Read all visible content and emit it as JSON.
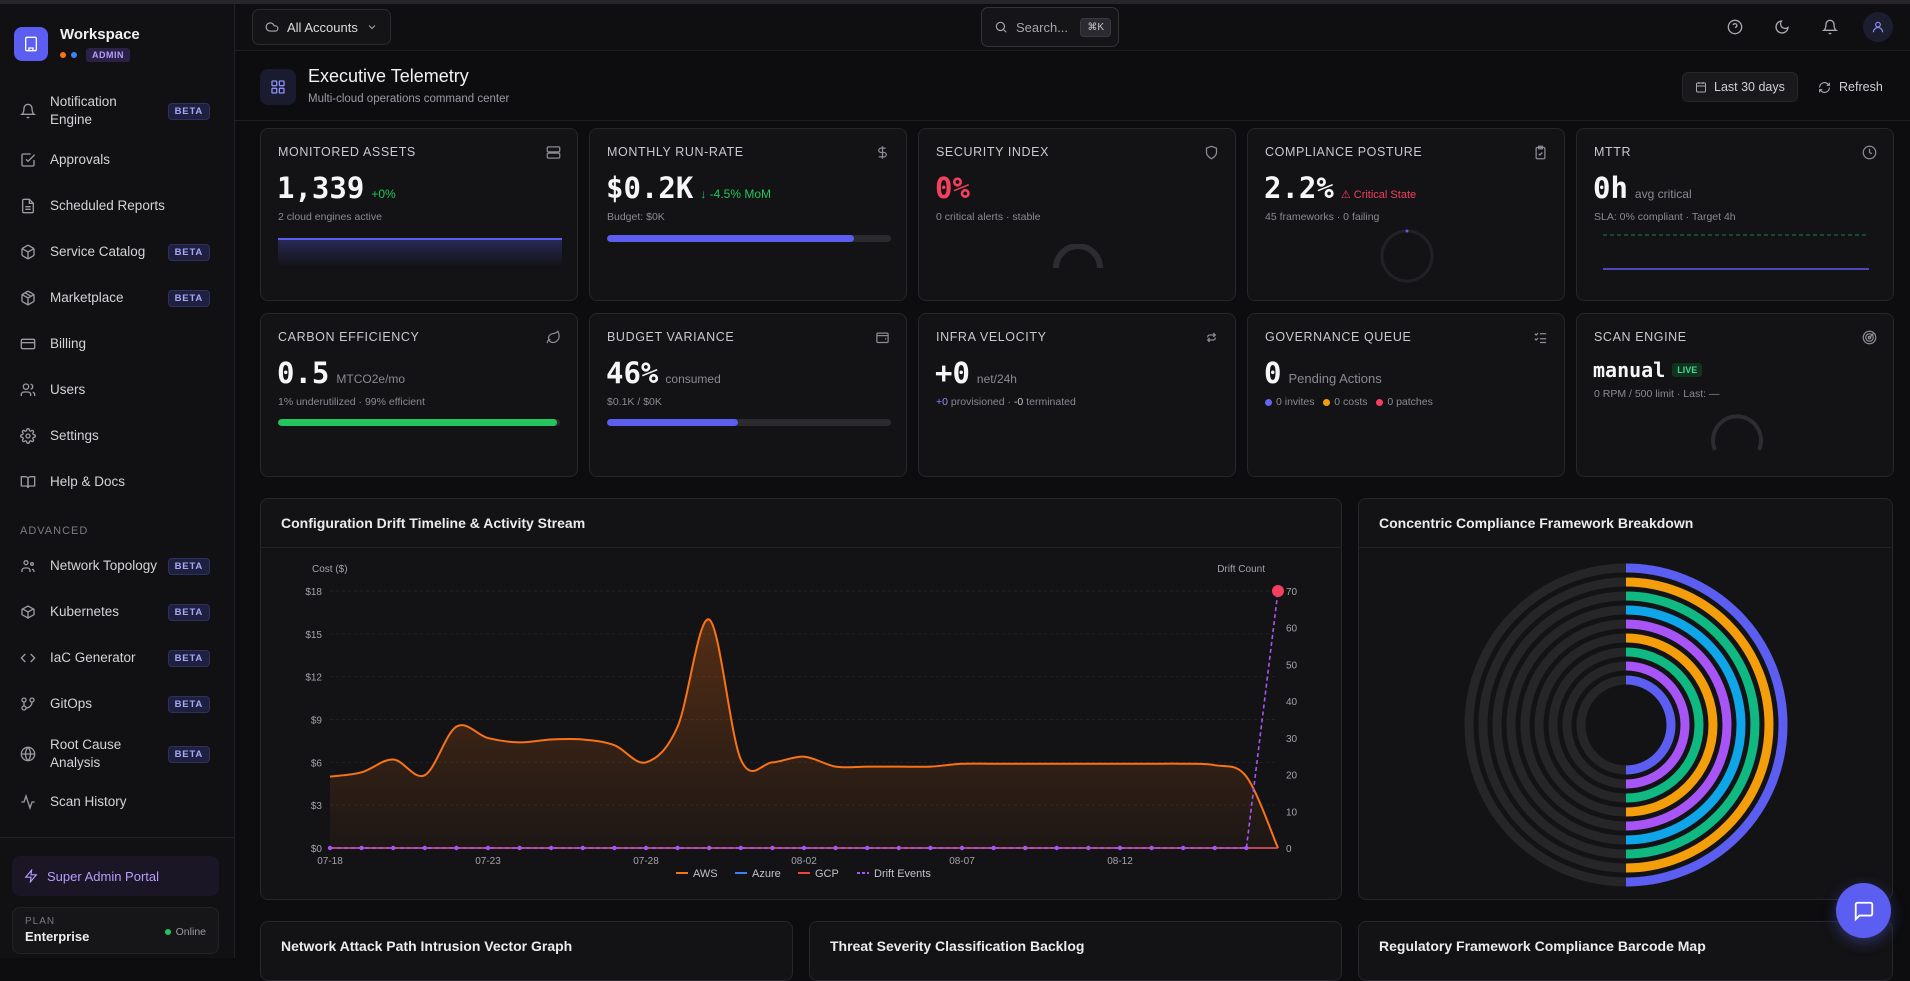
{
  "workspace": {
    "name": "Workspace",
    "role_badge": "ADMIN"
  },
  "sidebar": {
    "items": [
      {
        "label": "Notification Engine",
        "badge": "BETA",
        "icon": "bell-icon"
      },
      {
        "label": "Approvals",
        "badge": "",
        "icon": "check-square-icon"
      },
      {
        "label": "Scheduled Reports",
        "badge": "",
        "icon": "file-icon"
      },
      {
        "label": "Service Catalog",
        "badge": "BETA",
        "icon": "box-icon"
      },
      {
        "label": "Marketplace",
        "badge": "BETA",
        "icon": "package-icon"
      },
      {
        "label": "Billing",
        "badge": "",
        "icon": "credit-card-icon"
      },
      {
        "label": "Users",
        "badge": "",
        "icon": "users-icon"
      },
      {
        "label": "Settings",
        "badge": "",
        "icon": "gear-icon"
      },
      {
        "label": "Help & Docs",
        "badge": "",
        "icon": "book-icon"
      }
    ],
    "section_advanced": "ADVANCED",
    "advanced_items": [
      {
        "label": "Network Topology",
        "badge": "BETA",
        "icon": "network-icon"
      },
      {
        "label": "Kubernetes",
        "badge": "BETA",
        "icon": "cube-icon"
      },
      {
        "label": "IaC Generator",
        "badge": "BETA",
        "icon": "code-icon"
      },
      {
        "label": "GitOps",
        "badge": "BETA",
        "icon": "git-branch-icon"
      },
      {
        "label": "Root Cause Analysis",
        "badge": "BETA",
        "icon": "globe-icon"
      },
      {
        "label": "Scan History",
        "badge": "",
        "icon": "activity-icon"
      }
    ],
    "super_admin": "Super Admin Portal",
    "plan_label": "PLAN",
    "plan_value": "Enterprise",
    "status": "Online"
  },
  "header": {
    "accounts_label": "All Accounts",
    "search_placeholder": "Search...",
    "search_shortcut": "⌘K"
  },
  "page": {
    "title": "Executive Telemetry",
    "subtitle": "Multi-cloud operations command center",
    "range_label": "Last 30 days",
    "refresh_label": "Refresh"
  },
  "kpis": {
    "monitored_assets": {
      "title": "MONITORED ASSETS",
      "value": "1,339",
      "delta": "+0%",
      "sub": "2 cloud engines active"
    },
    "run_rate": {
      "title": "MONTHLY RUN-RATE",
      "value": "$0.2K",
      "delta": "↓ -4.5% MoM",
      "sub": "Budget: $0K",
      "progress": 0.87
    },
    "security": {
      "title": "SECURITY INDEX",
      "value": "0%",
      "sub": "0 critical alerts · stable"
    },
    "compliance": {
      "title": "COMPLIANCE POSTURE",
      "value": "2.2%",
      "delta": "⚠ Critical State",
      "sub": "45 frameworks · 0 failing"
    },
    "mttr": {
      "title": "MTTR",
      "value": "0h",
      "delta": "avg critical",
      "sub": "SLA: 0% compliant · Target 4h"
    },
    "carbon": {
      "title": "CARBON EFFICIENCY",
      "value": "0.5",
      "delta": "MTCO2e/mo",
      "sub": "1% underutilized · 99% efficient",
      "progress": 0.99
    },
    "budget": {
      "title": "BUDGET VARIANCE",
      "value": "46%",
      "delta": "consumed",
      "sub": "$0.1K / $0K",
      "progress": 0.46
    },
    "velocity": {
      "title": "INFRA VELOCITY",
      "value": "+0",
      "delta": "net/24h",
      "sub_a": "+0",
      "sub_b": " provisioned · ",
      "sub_c": "-0",
      "sub_d": " terminated"
    },
    "governance": {
      "title": "GOVERNANCE QUEUE",
      "value": "0",
      "delta": "Pending Actions",
      "invites": "0 invites",
      "costs": "0 costs",
      "patches": "0 patches"
    },
    "scan": {
      "title": "SCAN ENGINE",
      "value": "manual",
      "badge": "LIVE",
      "sub": "0 RPM / 500 limit · Last: —"
    }
  },
  "drift_panel": {
    "title": "Configuration Drift Timeline & Activity Stream"
  },
  "compliance_panel": {
    "title": "Concentric Compliance Framework Breakdown"
  },
  "bottom_panels": {
    "network": "Network Attack Path Intrusion Vector Graph",
    "threat": "Threat Severity Classification Backlog",
    "regulatory": "Regulatory Framework Compliance Barcode Map"
  },
  "colors": {
    "accent": "#5b5ef0",
    "aws": "#f97316",
    "azure": "#3b82f6",
    "gcp": "#ef4444",
    "drift": "#a855f7",
    "danger": "#f43f5e",
    "success": "#22c55e"
  },
  "chart_data": {
    "type": "line",
    "y_left_label": "Cost ($)",
    "y_right_label": "Drift Count",
    "y_left_ticks": [
      "$0",
      "$3",
      "$6",
      "$9",
      "$12",
      "$15",
      "$18"
    ],
    "y_right_ticks": [
      "0",
      "10",
      "20",
      "30",
      "40",
      "50",
      "60",
      "70"
    ],
    "ylim_left": [
      0,
      18
    ],
    "ylim_right": [
      0,
      70
    ],
    "x_ticks": [
      "07-18",
      "07-23",
      "07-28",
      "08-02",
      "08-07",
      "08-12"
    ],
    "x_days": 30,
    "legend": [
      "AWS",
      "Azure",
      "GCP",
      "Drift Events"
    ],
    "series": [
      {
        "name": "AWS",
        "values": [
          5.0,
          5.3,
          6.2,
          5.1,
          8.5,
          7.7,
          7.4,
          7.6,
          7.6,
          7.2,
          6.0,
          8.5,
          16.0,
          6.2,
          6.0,
          6.4,
          5.7,
          5.7,
          5.7,
          5.7,
          5.9,
          5.9,
          5.9,
          5.9,
          5.9,
          5.9,
          5.9,
          5.9,
          5.8,
          5.0,
          0.0
        ]
      },
      {
        "name": "Azure",
        "values": [
          0,
          0,
          0,
          0,
          0,
          0,
          0,
          0,
          0,
          0,
          0,
          0,
          0,
          0,
          0,
          0,
          0,
          0,
          0,
          0,
          0,
          0,
          0,
          0,
          0,
          0,
          0,
          0,
          0,
          0,
          0
        ]
      },
      {
        "name": "GCP",
        "values": [
          0,
          0,
          0,
          0,
          0,
          0,
          0,
          0,
          0,
          0,
          0,
          0,
          0,
          0,
          0,
          0,
          0,
          0,
          0,
          0,
          0,
          0,
          0,
          0,
          0,
          0,
          0,
          0,
          0,
          0,
          0
        ]
      },
      {
        "name": "Drift Events",
        "values": [
          0,
          0,
          0,
          0,
          0,
          0,
          0,
          0,
          0,
          0,
          0,
          0,
          0,
          0,
          0,
          0,
          0,
          0,
          0,
          0,
          0,
          0,
          0,
          0,
          0,
          0,
          0,
          0,
          0,
          0,
          70
        ]
      }
    ]
  },
  "compliance_rings": [
    {
      "color": "#5b5ef0",
      "value": 0.5
    },
    {
      "color": "#f59e0b",
      "value": 0.5
    },
    {
      "color": "#10b981",
      "value": 0.5
    },
    {
      "color": "#0ea5e9",
      "value": 0.5
    },
    {
      "color": "#a855f7",
      "value": 0.5
    },
    {
      "color": "#f59e0b",
      "value": 0.5
    },
    {
      "color": "#10b981",
      "value": 0.5
    },
    {
      "color": "#a855f7",
      "value": 0.5
    },
    {
      "color": "#5b5ef0",
      "value": 0.5
    }
  ]
}
